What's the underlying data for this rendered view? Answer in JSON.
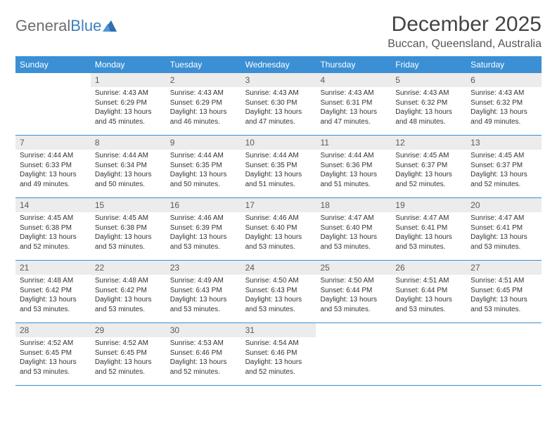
{
  "logo": {
    "text_gray": "General",
    "text_blue": "Blue"
  },
  "title": "December 2025",
  "location": "Buccan, Queensland, Australia",
  "colors": {
    "header_bg": "#3b8fd4",
    "header_text": "#ffffff",
    "daynum_bg": "#ececec",
    "rule": "#3b8fd4",
    "body_text": "#333333",
    "logo_gray": "#6d6d6d",
    "logo_blue": "#3b7fbf"
  },
  "day_names": [
    "Sunday",
    "Monday",
    "Tuesday",
    "Wednesday",
    "Thursday",
    "Friday",
    "Saturday"
  ],
  "weeks": [
    [
      {
        "n": "",
        "empty": true
      },
      {
        "n": "1",
        "sr": "4:43 AM",
        "ss": "6:29 PM",
        "dl": "13 hours and 45 minutes."
      },
      {
        "n": "2",
        "sr": "4:43 AM",
        "ss": "6:29 PM",
        "dl": "13 hours and 46 minutes."
      },
      {
        "n": "3",
        "sr": "4:43 AM",
        "ss": "6:30 PM",
        "dl": "13 hours and 47 minutes."
      },
      {
        "n": "4",
        "sr": "4:43 AM",
        "ss": "6:31 PM",
        "dl": "13 hours and 47 minutes."
      },
      {
        "n": "5",
        "sr": "4:43 AM",
        "ss": "6:32 PM",
        "dl": "13 hours and 48 minutes."
      },
      {
        "n": "6",
        "sr": "4:43 AM",
        "ss": "6:32 PM",
        "dl": "13 hours and 49 minutes."
      }
    ],
    [
      {
        "n": "7",
        "sr": "4:44 AM",
        "ss": "6:33 PM",
        "dl": "13 hours and 49 minutes."
      },
      {
        "n": "8",
        "sr": "4:44 AM",
        "ss": "6:34 PM",
        "dl": "13 hours and 50 minutes."
      },
      {
        "n": "9",
        "sr": "4:44 AM",
        "ss": "6:35 PM",
        "dl": "13 hours and 50 minutes."
      },
      {
        "n": "10",
        "sr": "4:44 AM",
        "ss": "6:35 PM",
        "dl": "13 hours and 51 minutes."
      },
      {
        "n": "11",
        "sr": "4:44 AM",
        "ss": "6:36 PM",
        "dl": "13 hours and 51 minutes."
      },
      {
        "n": "12",
        "sr": "4:45 AM",
        "ss": "6:37 PM",
        "dl": "13 hours and 52 minutes."
      },
      {
        "n": "13",
        "sr": "4:45 AM",
        "ss": "6:37 PM",
        "dl": "13 hours and 52 minutes."
      }
    ],
    [
      {
        "n": "14",
        "sr": "4:45 AM",
        "ss": "6:38 PM",
        "dl": "13 hours and 52 minutes."
      },
      {
        "n": "15",
        "sr": "4:45 AM",
        "ss": "6:38 PM",
        "dl": "13 hours and 53 minutes."
      },
      {
        "n": "16",
        "sr": "4:46 AM",
        "ss": "6:39 PM",
        "dl": "13 hours and 53 minutes."
      },
      {
        "n": "17",
        "sr": "4:46 AM",
        "ss": "6:40 PM",
        "dl": "13 hours and 53 minutes."
      },
      {
        "n": "18",
        "sr": "4:47 AM",
        "ss": "6:40 PM",
        "dl": "13 hours and 53 minutes."
      },
      {
        "n": "19",
        "sr": "4:47 AM",
        "ss": "6:41 PM",
        "dl": "13 hours and 53 minutes."
      },
      {
        "n": "20",
        "sr": "4:47 AM",
        "ss": "6:41 PM",
        "dl": "13 hours and 53 minutes."
      }
    ],
    [
      {
        "n": "21",
        "sr": "4:48 AM",
        "ss": "6:42 PM",
        "dl": "13 hours and 53 minutes."
      },
      {
        "n": "22",
        "sr": "4:48 AM",
        "ss": "6:42 PM",
        "dl": "13 hours and 53 minutes."
      },
      {
        "n": "23",
        "sr": "4:49 AM",
        "ss": "6:43 PM",
        "dl": "13 hours and 53 minutes."
      },
      {
        "n": "24",
        "sr": "4:50 AM",
        "ss": "6:43 PM",
        "dl": "13 hours and 53 minutes."
      },
      {
        "n": "25",
        "sr": "4:50 AM",
        "ss": "6:44 PM",
        "dl": "13 hours and 53 minutes."
      },
      {
        "n": "26",
        "sr": "4:51 AM",
        "ss": "6:44 PM",
        "dl": "13 hours and 53 minutes."
      },
      {
        "n": "27",
        "sr": "4:51 AM",
        "ss": "6:45 PM",
        "dl": "13 hours and 53 minutes."
      }
    ],
    [
      {
        "n": "28",
        "sr": "4:52 AM",
        "ss": "6:45 PM",
        "dl": "13 hours and 53 minutes."
      },
      {
        "n": "29",
        "sr": "4:52 AM",
        "ss": "6:45 PM",
        "dl": "13 hours and 52 minutes."
      },
      {
        "n": "30",
        "sr": "4:53 AM",
        "ss": "6:46 PM",
        "dl": "13 hours and 52 minutes."
      },
      {
        "n": "31",
        "sr": "4:54 AM",
        "ss": "6:46 PM",
        "dl": "13 hours and 52 minutes."
      },
      {
        "n": "",
        "empty": true
      },
      {
        "n": "",
        "empty": true
      },
      {
        "n": "",
        "empty": true
      }
    ]
  ],
  "labels": {
    "sunrise": "Sunrise:",
    "sunset": "Sunset:",
    "daylight": "Daylight:"
  }
}
